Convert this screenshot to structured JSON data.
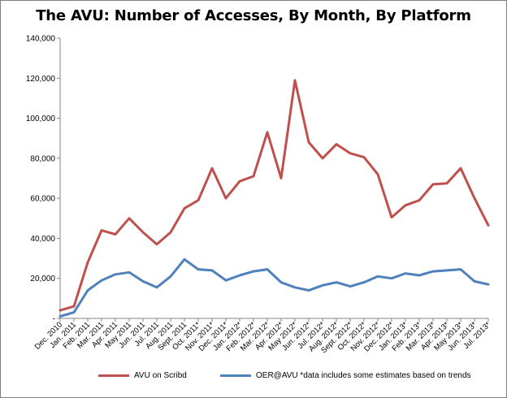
{
  "chart_data": {
    "type": "line",
    "title": "The AVU: Number of Accesses, By Month, By Platform",
    "xlabel": "",
    "ylabel": "",
    "ylim": [
      0,
      140000
    ],
    "yticks": [
      0,
      20000,
      40000,
      60000,
      80000,
      100000,
      120000,
      140000
    ],
    "ytick_labels": [
      "-",
      "20,000",
      "40,000",
      "60,000",
      "80,000",
      "100,000",
      "120,000",
      "140,000"
    ],
    "grid": false,
    "legend_position": "bottom",
    "categories": [
      "Dec. 2010",
      "Jan. 2011",
      "Feb. 2011",
      "Mar. 2011",
      "Apr. 2011",
      "May 2011",
      "Jun. 2011",
      "Jul. 2011",
      "Aug. 2011",
      "Sept. 2011",
      "Oct. 2011*",
      "Nov. 2011*",
      "Dec. 2011*",
      "Jan. 2012*",
      "Feb. 2012*",
      "Mar. 2012*",
      "Apr. 2012*",
      "May 2012*",
      "Jun. 2012*",
      "Jul. 2012*",
      "Aug. 2012*",
      "Sept. 2012*",
      "Oct. 2012*",
      "Nov. 2012*",
      "Dec. 2012*",
      "Jan. 2013*",
      "Feb. 2013*",
      "Mar. 2013*",
      "Apr. 2013*",
      "May 2013*",
      "Jun. 2013*",
      "Jul. 2013*"
    ],
    "series": [
      {
        "name": "AVU on Scribd",
        "color": "#c0504d",
        "values": [
          4000,
          6000,
          28000,
          44000,
          42000,
          50000,
          43000,
          37000,
          43000,
          55000,
          59000,
          75000,
          60000,
          68500,
          71000,
          93000,
          70000,
          119000,
          88000,
          80000,
          87000,
          82500,
          80500,
          72000,
          50500,
          56500,
          59000,
          67000,
          67500,
          75000,
          60000,
          46500
        ]
      },
      {
        "name": "OER@AVU *data includes some estimates based on trends",
        "color": "#4f81bd",
        "values": [
          1000,
          3000,
          14000,
          19000,
          22000,
          23000,
          18500,
          15500,
          21000,
          29500,
          24500,
          24000,
          19000,
          21500,
          23500,
          24500,
          18000,
          15500,
          14000,
          16500,
          18000,
          16000,
          18000,
          21000,
          20000,
          22500,
          21500,
          23500,
          24000,
          24500,
          18500,
          17000
        ]
      }
    ]
  }
}
